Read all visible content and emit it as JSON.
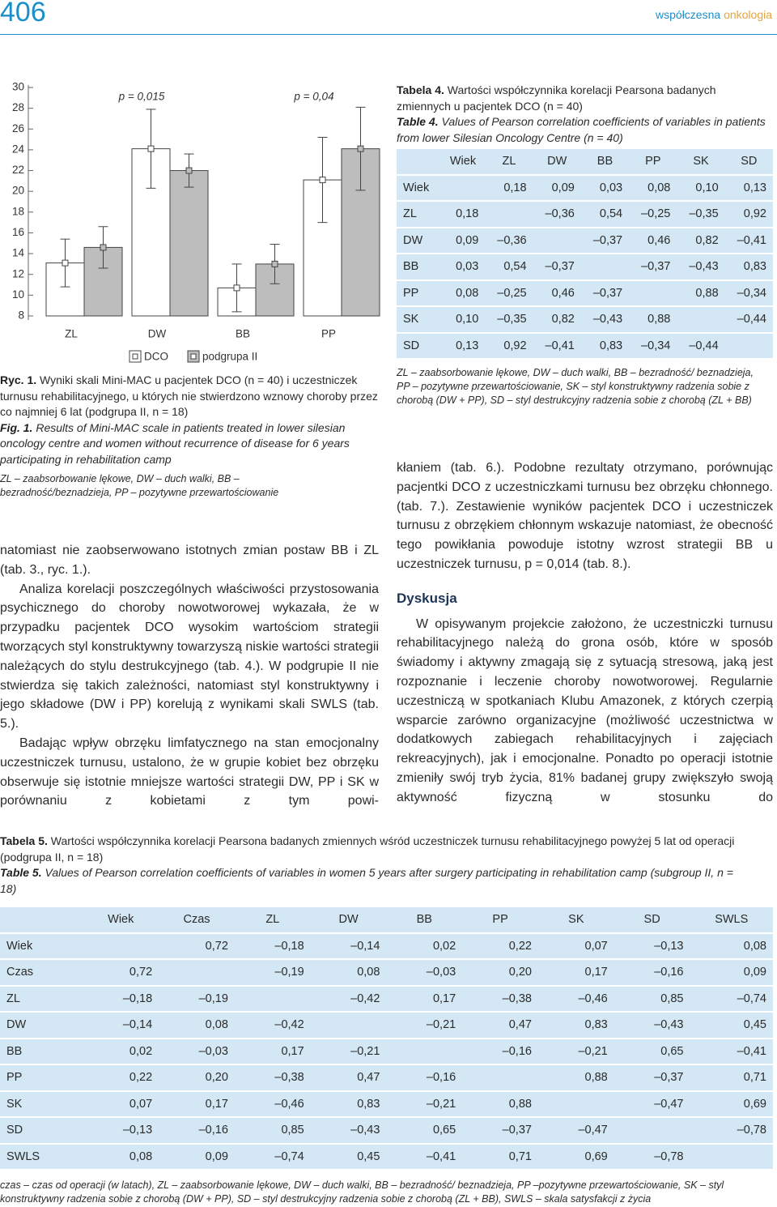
{
  "header": {
    "page_number": "406",
    "journal": "współczesna",
    "journal_accent": "onkologia"
  },
  "chart_data": {
    "type": "bar",
    "categories": [
      "ZL",
      "DW",
      "BB",
      "PP"
    ],
    "series": [
      {
        "name": "DCO",
        "color": "#ffffff",
        "values": [
          13.1,
          24.1,
          10.7,
          21.1
        ],
        "errors": [
          2.3,
          3.8,
          2.3,
          4.1
        ]
      },
      {
        "name": "podgrupa II",
        "color": "#bdbdbd",
        "values": [
          14.6,
          22.0,
          13.0,
          24.1
        ],
        "errors": [
          2.0,
          1.6,
          1.9,
          4.0
        ]
      }
    ],
    "ylim": [
      8,
      30
    ],
    "yticks": [
      8,
      10,
      12,
      14,
      16,
      18,
      20,
      22,
      24,
      26,
      28,
      30
    ],
    "annotations": [
      "p = 0,015",
      "p = 0,04"
    ]
  },
  "figure_caption": {
    "pl_label": "Ryc. 1.",
    "pl_text": "Wyniki skali Mini-MAC u pacjentek DCO (n = 40) i uczestniczek turnusu rehabilitacyjnego, u których nie stwierdzono wznowy choroby przez co najmniej 6 lat (podgrupa II, n = 18)",
    "en_label": "Fig. 1.",
    "en_text": "Results of Mini-MAC scale in patients treated in lower silesian oncology centre and women without recurrence of disease for 6 years participating in rehabilitation camp",
    "abbreviations": "ZL – zaabsorbowanie lękowe, DW – duch walki, BB – bezradność/beznadzieja, PP – pozytywne przewartościowanie"
  },
  "left_text": [
    "natomiast nie zaobserwowano istotnych zmian postaw BB i ZL (tab. 3., ryc. 1.).",
    "Analiza korelacji poszczególnych właściwości przystosowania psychicznego do choroby nowotworowej wykazała, że w przypadku pacjentek DCO wysokim wartościom strategii tworzących styl konstruktywny towarzyszą niskie wartości strategii należących do stylu destrukcyjnego (tab. 4.). W podgrupie II nie stwierdza się takich zależności, natomiast styl konstruktywny i jego składowe (DW i PP) korelują z wynikami skali SWLS (tab. 5.).",
    "Badając wpływ obrzęku limfatycznego na stan emocjonalny uczestniczek turnusu, ustalono, że w grupie kobiet bez obrzęku obserwuje się istotnie mniejsze wartości strategii DW, PP i SK w porównaniu z kobietami z tym powi-"
  ],
  "table_4": {
    "pl_label": "Tabela 4.",
    "pl_title": "Wartości współczynnika korelacji Pearsona badanych zmiennych u pacjentek DCO (n = 40)",
    "en_label": "Table 4.",
    "en_title": "Values of Pearson correlation coefficients of variables in patients from lower Silesian Oncology Centre (n = 40)",
    "columns": [
      "Wiek",
      "ZL",
      "DW",
      "BB",
      "PP",
      "SK",
      "SD"
    ],
    "rows": [
      {
        "label": "Wiek",
        "cells": [
          null,
          "0,18",
          "0,09",
          "0,03",
          "0,08",
          "0,10",
          "0,13"
        ]
      },
      {
        "label": "ZL",
        "cells": [
          "0,18",
          null,
          "–0,36",
          "0,54",
          "–0,25",
          "–0,35",
          "0,92"
        ]
      },
      {
        "label": "DW",
        "cells": [
          "0,09",
          "–0,36",
          null,
          "–0,37",
          "0,46",
          "0,82",
          "–0,41"
        ]
      },
      {
        "label": "BB",
        "cells": [
          "0,03",
          "0,54",
          "–0,37",
          null,
          "–0,37",
          "–0,43",
          "0,83"
        ]
      },
      {
        "label": "PP",
        "cells": [
          "0,08",
          "–0,25",
          "0,46",
          "–0,37",
          null,
          "0,88",
          "–0,34"
        ]
      },
      {
        "label": "SK",
        "cells": [
          "0,10",
          "–0,35",
          "0,82",
          "–0,43",
          "0,88",
          null,
          "–0,44"
        ]
      },
      {
        "label": "SD",
        "cells": [
          "0,13",
          "0,92",
          "–0,41",
          "0,83",
          "–0,34",
          "–0,44",
          null
        ]
      }
    ],
    "note": "ZL – zaabsorbowanie lękowe, DW – duch walki, BB – bezradność/ beznadzieja, PP – pozytywne przewartościowanie, SK – styl konstruktywny radzenia sobie z chorobą (DW + PP), SD – styl destrukcyjny radzenia sobie z chorobą (ZL + BB)"
  },
  "right_text": {
    "paragraph_1": "kłaniem (tab. 6.). Podobne rezultaty otrzymano, porównując pacjentki DCO z uczestniczkami turnusu bez obrzęku chłonnego. (tab. 7.). Zestawienie wyników pacjentek DCO i uczestniczek turnusu z obrzękiem chłonnym wskazuje natomiast, że obecność tego powikłania powoduje istotny wzrost strategii BB u uczestniczek turnusu, p = 0,014 (tab. 8.).",
    "heading": "Dyskusja",
    "paragraph_2": "W opisywanym projekcie założono, że uczestniczki turnusu rehabilitacyjnego należą do grona osób, które w sposób świadomy i aktywny zmagają się z sytuacją stresową, jaką jest rozpoznanie i leczenie choroby nowotworowej. Regularnie uczestniczą w spotkaniach Klubu Amazonek, z których czerpią wsparcie zarówno organizacyjne (możliwość uczestnictwa w dodatkowych zabiegach rehabilitacyjnych i zajęciach rekreacyjnych), jak i emocjonalne. Ponadto po operacji istotnie zmieniły swój tryb życia, 81% badanej grupy zwiększyło swoją aktywność fizyczną w stosunku do"
  },
  "table_5": {
    "pl_label": "Tabela 5.",
    "pl_title": "Wartości współczynnika korelacji Pearsona badanych zmiennych wśród uczestniczek turnusu rehabilitacyjnego powyżej 5 lat od operacji (podgrupa II, n = 18)",
    "en_label": "Table 5.",
    "en_title": "Values of Pearson correlation coefficients of variables in women 5 years after surgery participating in rehabilitation camp (subgroup II, n = 18)",
    "columns": [
      "Wiek",
      "Czas",
      "ZL",
      "DW",
      "BB",
      "PP",
      "SK",
      "SD",
      "SWLS"
    ],
    "rows": [
      {
        "label": "Wiek",
        "cells": [
          null,
          "0,72",
          "–0,18",
          "–0,14",
          "0,02",
          "0,22",
          "0,07",
          "–0,13",
          "0,08"
        ]
      },
      {
        "label": "Czas",
        "cells": [
          "0,72",
          null,
          "–0,19",
          "0,08",
          "–0,03",
          "0,20",
          "0,17",
          "–0,16",
          "0,09"
        ]
      },
      {
        "label": "ZL",
        "cells": [
          "–0,18",
          "–0,19",
          null,
          "–0,42",
          "0,17",
          "–0,38",
          "–0,46",
          "0,85",
          "–0,74"
        ]
      },
      {
        "label": "DW",
        "cells": [
          "–0,14",
          "0,08",
          "–0,42",
          null,
          "–0,21",
          "0,47",
          "0,83",
          "–0,43",
          "0,45"
        ]
      },
      {
        "label": "BB",
        "cells": [
          "0,02",
          "–0,03",
          "0,17",
          "–0,21",
          null,
          "–0,16",
          "–0,21",
          "0,65",
          "–0,41"
        ]
      },
      {
        "label": "PP",
        "cells": [
          "0,22",
          "0,20",
          "–0,38",
          "0,47",
          "–0,16",
          null,
          "0,88",
          "–0,37",
          "0,71"
        ]
      },
      {
        "label": "SK",
        "cells": [
          "0,07",
          "0,17",
          "–0,46",
          "0,83",
          "–0,21",
          "0,88",
          null,
          "–0,47",
          "0,69"
        ]
      },
      {
        "label": "SD",
        "cells": [
          "–0,13",
          "–0,16",
          "0,85",
          "–0,43",
          "0,65",
          "–0,37",
          "–0,47",
          null,
          "–0,78"
        ]
      },
      {
        "label": "SWLS",
        "cells": [
          "0,08",
          "0,09",
          "–0,74",
          "0,45",
          "–0,41",
          "0,71",
          "0,69",
          "–0,78",
          null
        ]
      }
    ],
    "note": "czas – czas od operacji (w latach), ZL – zaabsorbowanie lękowe, DW – duch walki, BB – bezradność/ beznadzieja, PP –pozytywne przewartościowanie, SK – styl konstruktywny radzenia sobie z chorobą (DW + PP), SD – styl destrukcyjny radzenia sobie z chorobą (ZL + BB), SWLS – skala satysfakcji z życia"
  }
}
